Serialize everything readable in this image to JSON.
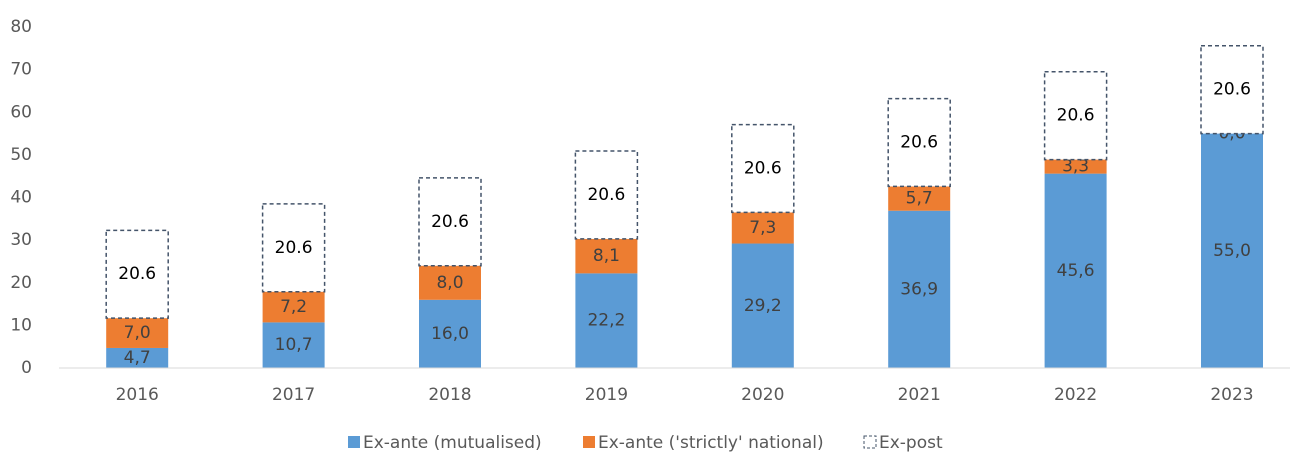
{
  "chart_data": {
    "type": "stacked_bar",
    "categories": [
      "2016",
      "2017",
      "2018",
      "2019",
      "2020",
      "2021",
      "2022",
      "2023"
    ],
    "series": [
      {
        "name": "Ex-ante (mutualised)",
        "color": "#5b9bd5",
        "values": [
          4.7,
          10.7,
          16.0,
          22.2,
          29.2,
          36.9,
          45.6,
          55.0
        ],
        "value_labels": [
          "4,7",
          "10,7",
          "16,0",
          "22,2",
          "29,2",
          "36,9",
          "45,6",
          "55,0"
        ]
      },
      {
        "name": "Ex-ante ('strictly' national)",
        "color": "#ed7d31",
        "values": [
          7.0,
          7.2,
          8.0,
          8.1,
          7.3,
          5.7,
          3.3,
          0.0
        ],
        "value_labels": [
          "7,0",
          "7,2",
          "8,0",
          "8,1",
          "7,3",
          "5,7",
          "3,3",
          "0,0"
        ]
      },
      {
        "name": "Ex-post",
        "color": "#44546a",
        "outline": true,
        "values": [
          20.6,
          20.6,
          20.6,
          20.6,
          20.6,
          20.6,
          20.6,
          20.6
        ]
      }
    ],
    "ylim": [
      0,
      80
    ],
    "yticks": [
      0,
      10,
      20,
      30,
      40,
      50,
      60,
      70,
      80
    ],
    "grid": false,
    "legend": "bottom"
  }
}
